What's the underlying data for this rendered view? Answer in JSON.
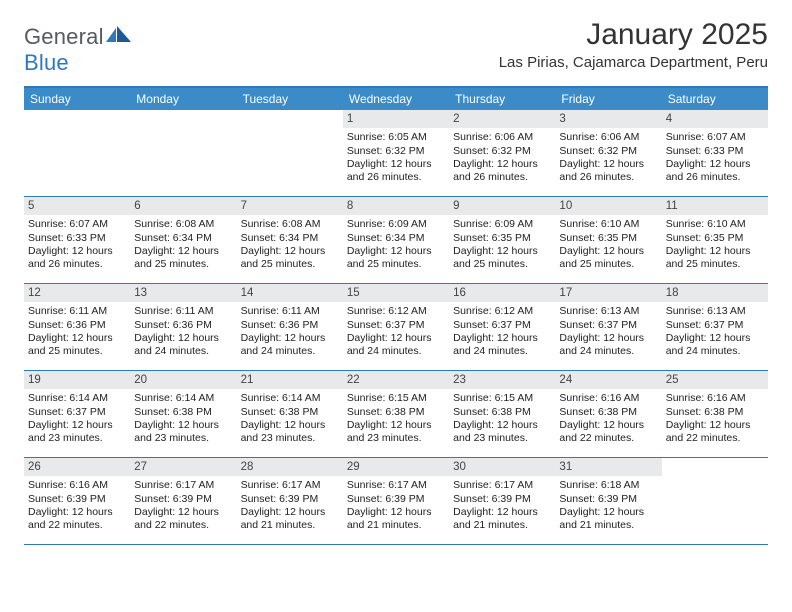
{
  "logo": {
    "text1": "General",
    "text2": "Blue"
  },
  "title": "January 2025",
  "location": "Las Pirias, Cajamarca Department, Peru",
  "colors": {
    "header_bar": "#3b8bc8",
    "border": "#2f78bd",
    "daynum_bg": "#e8e9ea",
    "text": "#222222",
    "title_text": "#333333"
  },
  "calendar": {
    "days_of_week": [
      "Sunday",
      "Monday",
      "Tuesday",
      "Wednesday",
      "Thursday",
      "Friday",
      "Saturday"
    ],
    "first_day_index": 3,
    "days": [
      {
        "n": 1,
        "sunrise": "6:05 AM",
        "sunset": "6:32 PM",
        "daylight": "12 hours and 26 minutes."
      },
      {
        "n": 2,
        "sunrise": "6:06 AM",
        "sunset": "6:32 PM",
        "daylight": "12 hours and 26 minutes."
      },
      {
        "n": 3,
        "sunrise": "6:06 AM",
        "sunset": "6:32 PM",
        "daylight": "12 hours and 26 minutes."
      },
      {
        "n": 4,
        "sunrise": "6:07 AM",
        "sunset": "6:33 PM",
        "daylight": "12 hours and 26 minutes."
      },
      {
        "n": 5,
        "sunrise": "6:07 AM",
        "sunset": "6:33 PM",
        "daylight": "12 hours and 26 minutes."
      },
      {
        "n": 6,
        "sunrise": "6:08 AM",
        "sunset": "6:34 PM",
        "daylight": "12 hours and 25 minutes."
      },
      {
        "n": 7,
        "sunrise": "6:08 AM",
        "sunset": "6:34 PM",
        "daylight": "12 hours and 25 minutes."
      },
      {
        "n": 8,
        "sunrise": "6:09 AM",
        "sunset": "6:34 PM",
        "daylight": "12 hours and 25 minutes."
      },
      {
        "n": 9,
        "sunrise": "6:09 AM",
        "sunset": "6:35 PM",
        "daylight": "12 hours and 25 minutes."
      },
      {
        "n": 10,
        "sunrise": "6:10 AM",
        "sunset": "6:35 PM",
        "daylight": "12 hours and 25 minutes."
      },
      {
        "n": 11,
        "sunrise": "6:10 AM",
        "sunset": "6:35 PM",
        "daylight": "12 hours and 25 minutes."
      },
      {
        "n": 12,
        "sunrise": "6:11 AM",
        "sunset": "6:36 PM",
        "daylight": "12 hours and 25 minutes."
      },
      {
        "n": 13,
        "sunrise": "6:11 AM",
        "sunset": "6:36 PM",
        "daylight": "12 hours and 24 minutes."
      },
      {
        "n": 14,
        "sunrise": "6:11 AM",
        "sunset": "6:36 PM",
        "daylight": "12 hours and 24 minutes."
      },
      {
        "n": 15,
        "sunrise": "6:12 AM",
        "sunset": "6:37 PM",
        "daylight": "12 hours and 24 minutes."
      },
      {
        "n": 16,
        "sunrise": "6:12 AM",
        "sunset": "6:37 PM",
        "daylight": "12 hours and 24 minutes."
      },
      {
        "n": 17,
        "sunrise": "6:13 AM",
        "sunset": "6:37 PM",
        "daylight": "12 hours and 24 minutes."
      },
      {
        "n": 18,
        "sunrise": "6:13 AM",
        "sunset": "6:37 PM",
        "daylight": "12 hours and 24 minutes."
      },
      {
        "n": 19,
        "sunrise": "6:14 AM",
        "sunset": "6:37 PM",
        "daylight": "12 hours and 23 minutes."
      },
      {
        "n": 20,
        "sunrise": "6:14 AM",
        "sunset": "6:38 PM",
        "daylight": "12 hours and 23 minutes."
      },
      {
        "n": 21,
        "sunrise": "6:14 AM",
        "sunset": "6:38 PM",
        "daylight": "12 hours and 23 minutes."
      },
      {
        "n": 22,
        "sunrise": "6:15 AM",
        "sunset": "6:38 PM",
        "daylight": "12 hours and 23 minutes."
      },
      {
        "n": 23,
        "sunrise": "6:15 AM",
        "sunset": "6:38 PM",
        "daylight": "12 hours and 23 minutes."
      },
      {
        "n": 24,
        "sunrise": "6:16 AM",
        "sunset": "6:38 PM",
        "daylight": "12 hours and 22 minutes."
      },
      {
        "n": 25,
        "sunrise": "6:16 AM",
        "sunset": "6:38 PM",
        "daylight": "12 hours and 22 minutes."
      },
      {
        "n": 26,
        "sunrise": "6:16 AM",
        "sunset": "6:39 PM",
        "daylight": "12 hours and 22 minutes."
      },
      {
        "n": 27,
        "sunrise": "6:17 AM",
        "sunset": "6:39 PM",
        "daylight": "12 hours and 22 minutes."
      },
      {
        "n": 28,
        "sunrise": "6:17 AM",
        "sunset": "6:39 PM",
        "daylight": "12 hours and 21 minutes."
      },
      {
        "n": 29,
        "sunrise": "6:17 AM",
        "sunset": "6:39 PM",
        "daylight": "12 hours and 21 minutes."
      },
      {
        "n": 30,
        "sunrise": "6:17 AM",
        "sunset": "6:39 PM",
        "daylight": "12 hours and 21 minutes."
      },
      {
        "n": 31,
        "sunrise": "6:18 AM",
        "sunset": "6:39 PM",
        "daylight": "12 hours and 21 minutes."
      }
    ],
    "labels": {
      "sunrise": "Sunrise:",
      "sunset": "Sunset:",
      "daylight": "Daylight:"
    }
  }
}
